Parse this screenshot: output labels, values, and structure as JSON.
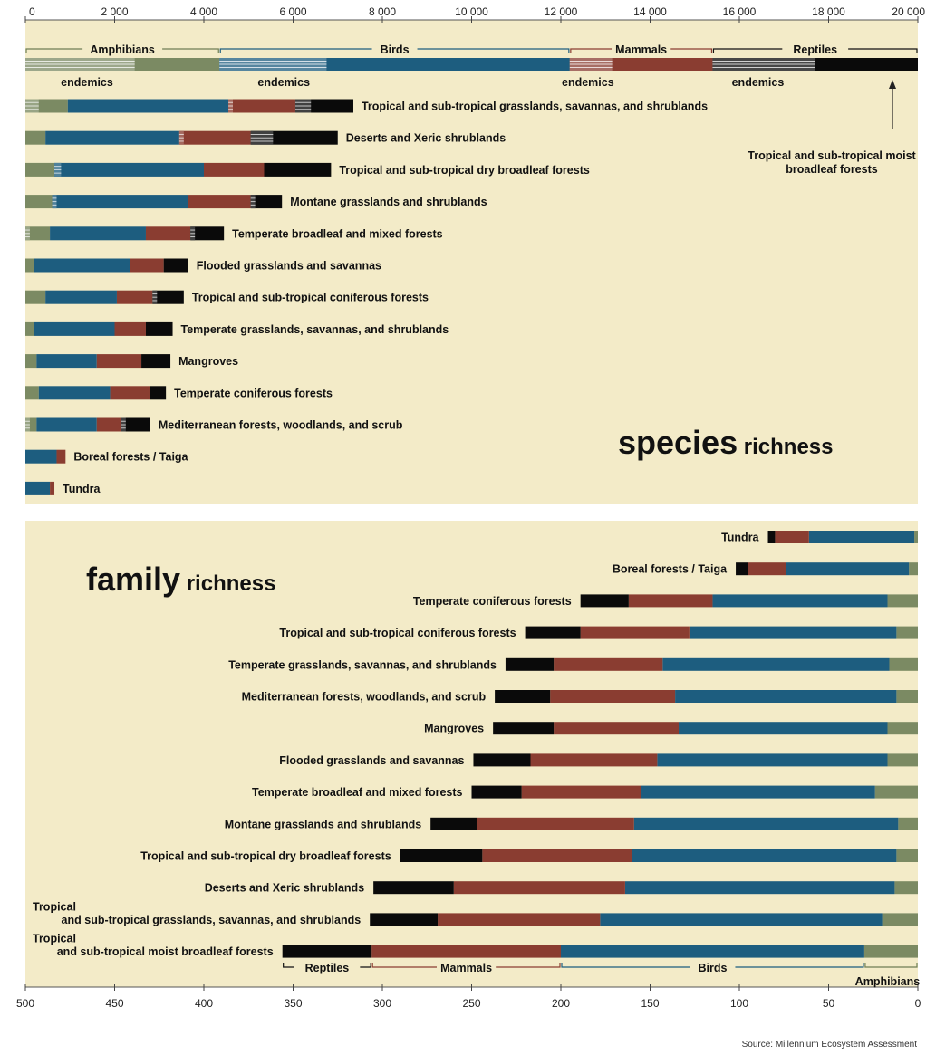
{
  "colors": {
    "panel_bg": "#f3ebc8",
    "amphibians": "#7b8a63",
    "birds": "#1d5d7f",
    "mammals": "#8a3d31",
    "reptiles": "#0a0a0a",
    "amphibians_text": "#6e7e54",
    "birds_text": "#1d5d7f",
    "mammals_text": "#8a3d31",
    "reptiles_text": "#111111"
  },
  "source": "Source: Millennium Ecosystem Assessment",
  "chart_data": [
    {
      "type": "bar",
      "orientation": "horizontal-stacked",
      "title_main": "species",
      "title_sub": "richness",
      "xlim": [
        0,
        20000
      ],
      "x_ticks": [
        "0",
        "2 000",
        "4 000",
        "6 000",
        "8 000",
        "10 000",
        "12 000",
        "14 000",
        "16 000",
        "18 000",
        "20 000"
      ],
      "series_names": [
        "Amphibians",
        "Birds",
        "Mammals",
        "Reptiles"
      ],
      "endemics_label": "endemics",
      "annotation": "Tropical and sub-tropical moist broadleaf forests",
      "top_bar": {
        "label": "Tropical and sub-tropical moist broadleaf forests",
        "values": [
          4350,
          7850,
          3200,
          4600
        ],
        "endemics": [
          2450,
          2400,
          950,
          2300
        ]
      },
      "rows": [
        {
          "label": "Tropical and sub-tropical grasslands, savannas, and shrublands",
          "values": [
            950,
            3600,
            1500,
            1300
          ],
          "endemics": [
            300,
            0,
            100,
            350
          ]
        },
        {
          "label": "Deserts and Xeric shrublands",
          "values": [
            450,
            3000,
            1600,
            1950
          ],
          "endemics": [
            0,
            0,
            100,
            500
          ]
        },
        {
          "label": "Tropical and sub-tropical dry broadleaf forests",
          "values": [
            650,
            3350,
            1350,
            1500
          ],
          "endemics": [
            0,
            150,
            0,
            0
          ]
        },
        {
          "label": "Montane grasslands and shrublands",
          "values": [
            600,
            3050,
            1400,
            700
          ],
          "endemics": [
            0,
            100,
            0,
            100
          ]
        },
        {
          "label": "Temperate broadleaf and mixed forests",
          "values": [
            550,
            2150,
            1000,
            750
          ],
          "endemics": [
            100,
            0,
            0,
            100
          ]
        },
        {
          "label": "Flooded grasslands and savannas",
          "values": [
            200,
            2150,
            750,
            550
          ],
          "endemics": [
            0,
            0,
            0,
            0
          ]
        },
        {
          "label": "Tropical and sub-tropical coniferous forests",
          "values": [
            450,
            1600,
            800,
            700
          ],
          "endemics": [
            0,
            0,
            0,
            100
          ]
        },
        {
          "label": "Temperate grasslands, savannas, and shrublands",
          "values": [
            200,
            1800,
            700,
            600
          ],
          "endemics": [
            0,
            0,
            0,
            0
          ]
        },
        {
          "label": "Mangroves",
          "values": [
            250,
            1350,
            1000,
            650
          ],
          "endemics": [
            0,
            0,
            0,
            0
          ]
        },
        {
          "label": "Temperate coniferous forests",
          "values": [
            300,
            1600,
            900,
            350
          ],
          "endemics": [
            0,
            0,
            0,
            0
          ]
        },
        {
          "label": "Mediterranean forests, woodlands, and scrub",
          "values": [
            250,
            1350,
            550,
            650
          ],
          "endemics": [
            100,
            0,
            0,
            100
          ]
        },
        {
          "label": "Boreal forests / Taiga",
          "values": [
            0,
            700,
            200,
            0
          ],
          "endemics": [
            0,
            0,
            0,
            0
          ]
        },
        {
          "label": "Tundra",
          "values": [
            0,
            550,
            100,
            0
          ],
          "endemics": [
            0,
            0,
            0,
            0
          ]
        }
      ]
    },
    {
      "type": "bar",
      "orientation": "horizontal-stacked-reversed",
      "title_main": "family",
      "title_sub": "richness",
      "xlim": [
        500,
        0
      ],
      "x_ticks": [
        "500",
        "450",
        "400",
        "350",
        "300",
        "250",
        "200",
        "150",
        "100",
        "50",
        "0"
      ],
      "series_names": [
        "Amphibians",
        "Birds",
        "Mammals",
        "Reptiles"
      ],
      "rows": [
        {
          "label": "Tundra",
          "values": [
            2,
            59,
            19,
            4
          ]
        },
        {
          "label": "Boreal forests / Taiga",
          "values": [
            5,
            69,
            21,
            7
          ]
        },
        {
          "label": "Temperate coniferous forests",
          "values": [
            17,
            98,
            47,
            27
          ]
        },
        {
          "label": "Tropical and sub-tropical coniferous forests",
          "values": [
            12,
            116,
            61,
            31
          ]
        },
        {
          "label": "Temperate grasslands, savannas, and shrublands",
          "values": [
            16,
            127,
            61,
            27
          ]
        },
        {
          "label": "Mediterranean forests, woodlands, and scrub",
          "values": [
            12,
            124,
            70,
            31
          ]
        },
        {
          "label": "Mangroves",
          "values": [
            17,
            117,
            70,
            34
          ]
        },
        {
          "label": "Flooded grasslands and savannas",
          "values": [
            17,
            129,
            71,
            32
          ]
        },
        {
          "label": "Temperate broadleaf and mixed forests",
          "values": [
            24,
            131,
            67,
            28
          ]
        },
        {
          "label": "Montane grasslands and shrublands",
          "values": [
            11,
            148,
            88,
            26
          ]
        },
        {
          "label": "Tropical and sub-tropical dry broadleaf forests",
          "values": [
            12,
            148,
            84,
            46
          ]
        },
        {
          "label": "Deserts and Xeric shrublands",
          "values": [
            13,
            151,
            96,
            45
          ]
        },
        {
          "label": "Tropical\nand sub-tropical grasslands, savannas, and shrublands",
          "values": [
            20,
            158,
            91,
            38
          ]
        },
        {
          "label": "Tropical\nand sub-tropical moist broadleaf forests",
          "values": [
            30,
            170,
            106,
            50
          ]
        }
      ]
    }
  ]
}
